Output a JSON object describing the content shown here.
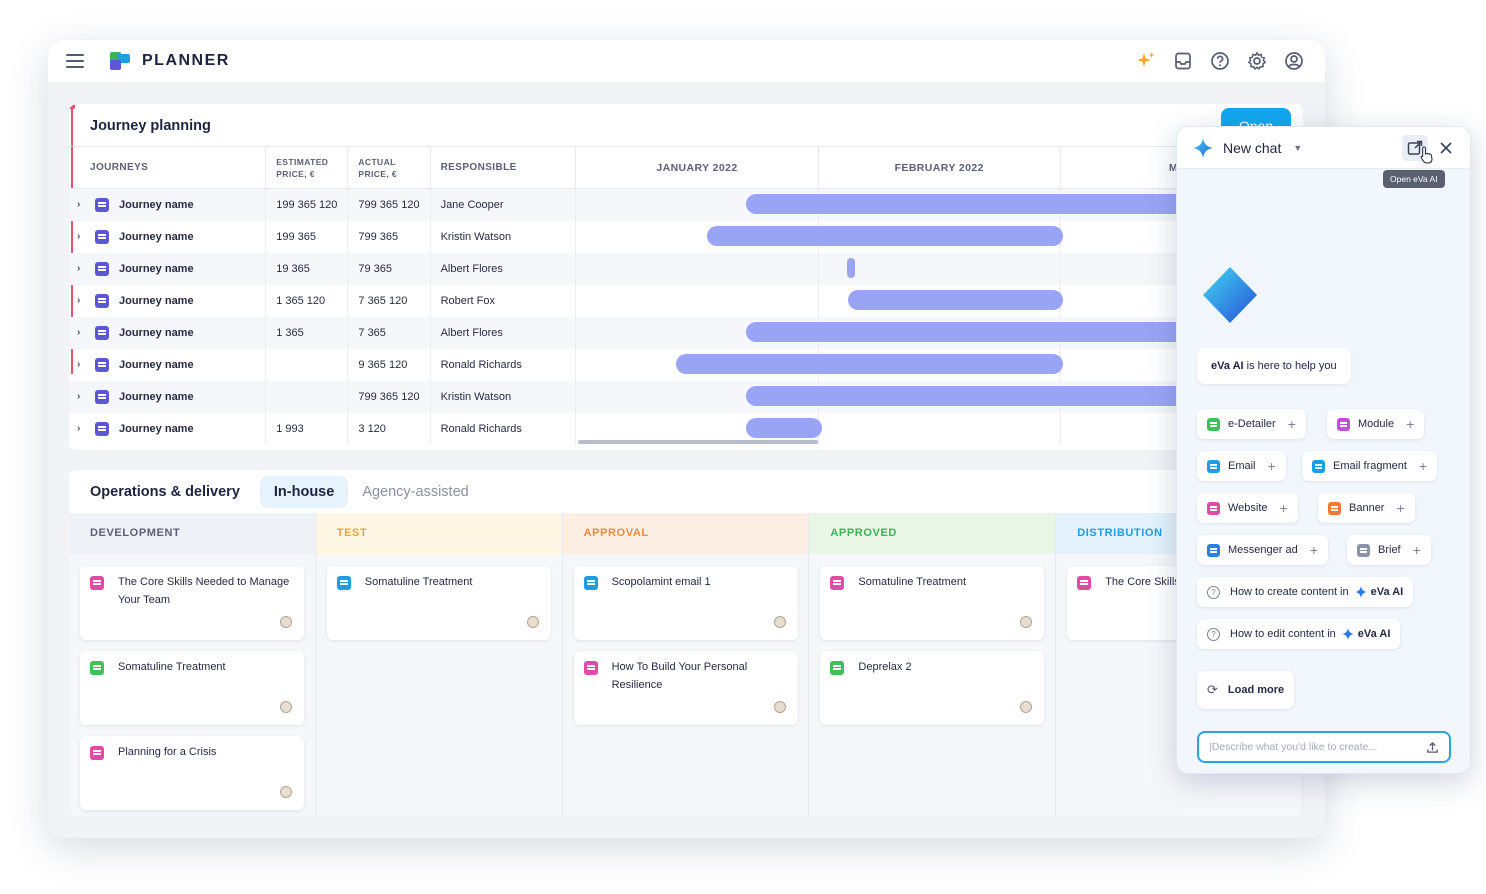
{
  "colors": {
    "accent": "#13a7ee",
    "gantt_bar": "#9aa4f5",
    "journey_icon": "#5b57d6",
    "today_line": "#e3546a"
  },
  "app": {
    "brand": "PLANNER",
    "top_icons": [
      "sparkle-icon",
      "inbox-icon",
      "help-icon",
      "settings-icon",
      "account-icon"
    ]
  },
  "journey": {
    "title": "Journey planning",
    "open_label": "Open",
    "headers": {
      "journeys": "JOURNEYS",
      "estimated": "ESTIMATED PRICE, €",
      "actual": "ACTUAL PRICE, €",
      "responsible": "RESPONSIBLE",
      "months": [
        "JANUARY 2022",
        "FEBRUARY 2022",
        "MAR"
      ]
    },
    "rows": [
      {
        "name": "Journey name",
        "estimated": "199 365 120",
        "actual": "799 365 120",
        "responsible": "Jane Cooper"
      },
      {
        "name": "Journey name",
        "estimated": "199 365",
        "actual": "799 365",
        "responsible": "Kristin Watson"
      },
      {
        "name": "Journey name",
        "estimated": "19 365",
        "actual": "79 365",
        "responsible": "Albert Flores"
      },
      {
        "name": "Journey name",
        "estimated": "1 365 120",
        "actual": "7 365 120",
        "responsible": "Robert Fox"
      },
      {
        "name": "Journey name",
        "estimated": "1 365",
        "actual": "7 365",
        "responsible": "Albert Flores"
      },
      {
        "name": "Journey name",
        "estimated": "",
        "actual": "9 365 120",
        "responsible": "Ronald Richards"
      },
      {
        "name": "Journey name",
        "estimated": "",
        "actual": "799 365 120",
        "responsible": "Kristin Watson"
      },
      {
        "name": "Journey name",
        "estimated": "1 993",
        "actual": "3 120",
        "responsible": "Ronald Richards"
      }
    ]
  },
  "ops": {
    "title": "Operations & delivery",
    "tabs": [
      "In-house",
      "Agency-assisted"
    ],
    "columns": [
      {
        "label": "DEVELOPMENT",
        "color": "#5b6075",
        "bg": "#eef1f6",
        "cards": [
          {
            "title": "The Core Skills Needed to Manage Your Team",
            "icon": "#e04ba7"
          },
          {
            "title": "Somatuline Treatment",
            "icon": "#3fc05a"
          },
          {
            "title": "Planning for a Crisis",
            "icon": "#e04ba7"
          }
        ]
      },
      {
        "label": "TEST",
        "color": "#e8a43a",
        "bg": "#fdf6e3",
        "cards": [
          {
            "title": "Somatuline Treatment",
            "icon": "#1e9de6"
          }
        ]
      },
      {
        "label": "APPROVAL",
        "color": "#ef8a3c",
        "bg": "#fdeee3",
        "cards": [
          {
            "title": "Scopolamint email 1",
            "icon": "#1e9de6"
          },
          {
            "title": "How To Build Your Personal Resilience",
            "icon": "#e04ba7"
          }
        ]
      },
      {
        "label": "APPROVED",
        "color": "#3cb05a",
        "bg": "#e9f6e6",
        "cards": [
          {
            "title": "Somatuline Treatment",
            "icon": "#e04ba7"
          },
          {
            "title": "Deprelax 2",
            "icon": "#3fc05a"
          }
        ]
      },
      {
        "label": "DISTRIBUTION",
        "color": "#1e9de6",
        "bg": "#e3f2fc",
        "cards": [
          {
            "title": "The Core Skills Your Team",
            "icon": "#e04ba7"
          }
        ]
      }
    ]
  },
  "panel": {
    "title": "New chat",
    "tooltip": "Open eVa AI",
    "help_brand": "eVa AI",
    "help_rest": " is here to help you",
    "chips": [
      {
        "label": "e-Detailer",
        "icon": "#3fc05a"
      },
      {
        "label": "Module",
        "icon": "#c44fd8"
      },
      {
        "label": "Email",
        "icon": "#1e9de6"
      },
      {
        "label": "Email fragment",
        "icon": "#1e9de6"
      },
      {
        "label": "Website",
        "icon": "#e04ba7"
      },
      {
        "label": "Banner",
        "icon": "#ef7a3c"
      },
      {
        "label": "Messenger ad",
        "icon": "#2f7fe0"
      },
      {
        "label": "Brief",
        "icon": "#8a93a8"
      }
    ],
    "questions": [
      "How to create content in",
      "How to edit content in"
    ],
    "eva": "eVa AI",
    "load_more": "Load more",
    "input_placeholder": "|Describe what you'd like to create..."
  }
}
